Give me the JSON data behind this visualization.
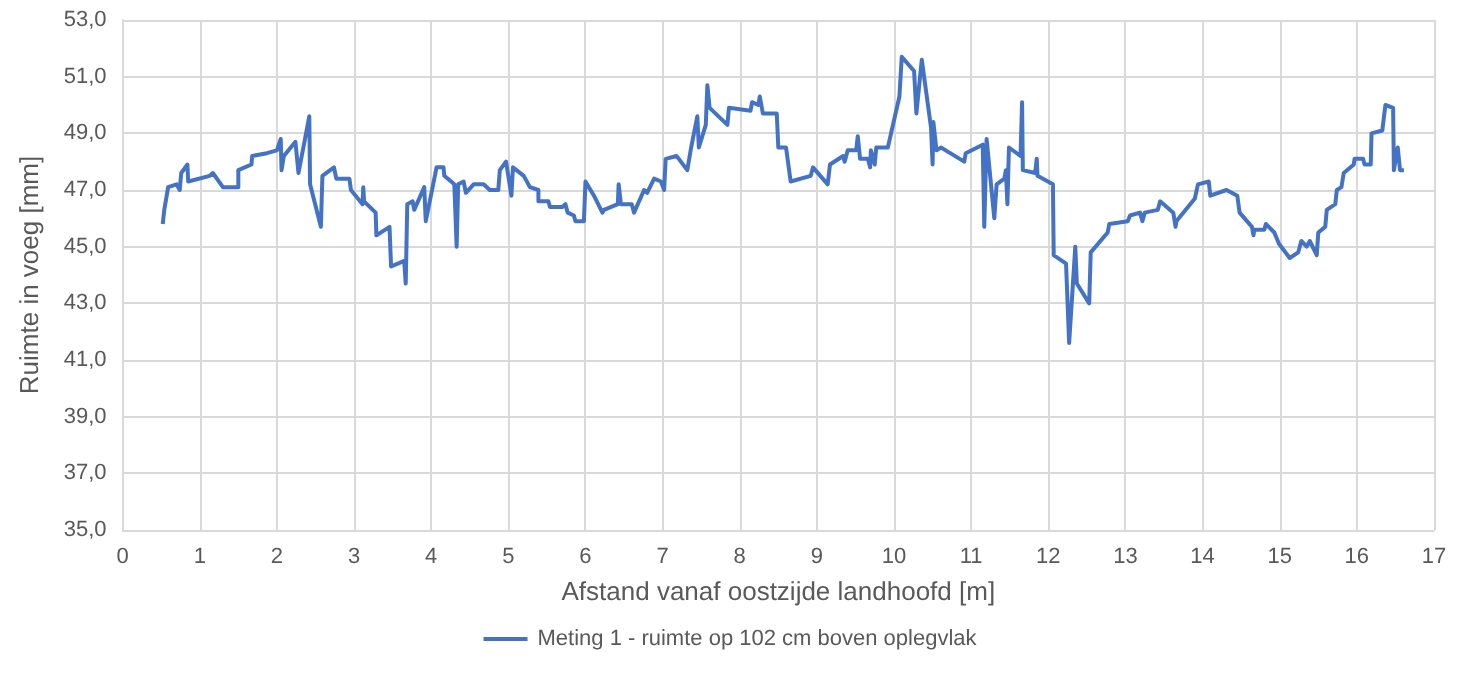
{
  "chart_data": {
    "type": "line",
    "xlabel": "Afstand vanaf oostzijde landhoofd [m]",
    "ylabel": "Ruimte in voeg [mm]",
    "xlim": [
      0,
      17
    ],
    "xticks": [
      0,
      1,
      2,
      3,
      4,
      5,
      6,
      7,
      8,
      9,
      10,
      11,
      12,
      13,
      14,
      15,
      16,
      17
    ],
    "ylim": [
      35,
      53
    ],
    "yticks": [
      {
        "value": 35,
        "label": "35,0"
      },
      {
        "value": 37,
        "label": "37,0"
      },
      {
        "value": 39,
        "label": "39,0"
      },
      {
        "value": 41,
        "label": "41,0"
      },
      {
        "value": 43,
        "label": "43,0"
      },
      {
        "value": 45,
        "label": "45,0"
      },
      {
        "value": 47,
        "label": "47,0"
      },
      {
        "value": 49,
        "label": "49,0"
      },
      {
        "value": 51,
        "label": "51,0"
      },
      {
        "value": 53,
        "label": "53,0"
      }
    ],
    "grid": true,
    "legend": "bottom",
    "marker": "none",
    "line_style": "solid",
    "series": [
      {
        "name": "Meting 1 - ruimte op 102 cm boven oplegvlak",
        "color": "#4472c4",
        "x": [
          0.52,
          0.54,
          0.59,
          0.7,
          0.74,
          0.76,
          0.84,
          0.85,
          1.13,
          1.17,
          1.3,
          1.5,
          1.5,
          1.67,
          1.68,
          1.87,
          2.0,
          2.05,
          2.06,
          2.09,
          2.24,
          2.28,
          2.42,
          2.43,
          2.57,
          2.59,
          2.74,
          2.77,
          2.94,
          2.96,
          3.11,
          3.12,
          3.13,
          3.28,
          3.29,
          3.46,
          3.48,
          3.65,
          3.67,
          3.69,
          3.76,
          3.78,
          3.91,
          3.93,
          4.07,
          4.16,
          4.17,
          4.3,
          4.33,
          4.35,
          4.42,
          4.45,
          4.55,
          4.68,
          4.76,
          4.87,
          4.89,
          4.97,
          5.0,
          5.04,
          5.06,
          5.2,
          5.28,
          5.39,
          5.39,
          5.52,
          5.54,
          5.7,
          5.74,
          5.77,
          5.85,
          5.87,
          5.98,
          6.0,
          6.11,
          6.22,
          6.24,
          6.42,
          6.43,
          6.46,
          6.6,
          6.63,
          6.76,
          6.8,
          6.89,
          6.98,
          7.02,
          7.04,
          7.18,
          7.21,
          7.32,
          7.37,
          7.45,
          7.47,
          7.56,
          7.58,
          7.61,
          7.84,
          7.86,
          8.14,
          8.16,
          8.24,
          8.26,
          8.3,
          8.48,
          8.5,
          8.6,
          8.66,
          8.92,
          8.95,
          9.14,
          9.17,
          9.34,
          9.36,
          9.4,
          9.51,
          9.53,
          9.56,
          9.66,
          9.69,
          9.7,
          9.75,
          9.77,
          9.92,
          10.07,
          10.1,
          10.26,
          10.29,
          10.36,
          10.48,
          10.5,
          10.51,
          10.55,
          10.61,
          10.67,
          10.91,
          10.93,
          11.15,
          11.17,
          11.2,
          11.3,
          11.33,
          11.43,
          11.45,
          11.47,
          11.49,
          11.64,
          11.66,
          11.67,
          11.83,
          11.85,
          11.86,
          12.06,
          12.07,
          12.23,
          12.27,
          12.35,
          12.37,
          12.53,
          12.55,
          12.77,
          12.79,
          13.03,
          13.06,
          13.19,
          13.22,
          13.25,
          13.42,
          13.45,
          13.62,
          13.65,
          13.66,
          13.9,
          13.94,
          14.08,
          14.1,
          14.31,
          14.45,
          14.48,
          14.64,
          14.66,
          14.67,
          14.8,
          14.82,
          14.93,
          14.99,
          15.13,
          15.24,
          15.28,
          15.35,
          15.39,
          15.48,
          15.5,
          15.59,
          15.61,
          15.72,
          15.74,
          15.8,
          15.83,
          15.96,
          15.97,
          16.08,
          16.1,
          16.18,
          16.19,
          16.33,
          16.37,
          16.47,
          16.48,
          16.53,
          16.56,
          16.61
        ],
        "values": [
          45.8,
          46.3,
          47.1,
          47.2,
          47.0,
          47.6,
          47.9,
          47.3,
          47.5,
          47.6,
          47.1,
          47.1,
          47.7,
          47.9,
          48.2,
          48.3,
          48.4,
          48.8,
          47.7,
          48.2,
          48.7,
          47.6,
          49.6,
          47.2,
          45.7,
          47.5,
          47.8,
          47.4,
          47.4,
          47.0,
          46.5,
          47.1,
          46.6,
          46.2,
          45.4,
          45.7,
          44.3,
          44.5,
          43.7,
          46.5,
          46.6,
          46.3,
          47.1,
          45.9,
          47.8,
          47.8,
          47.5,
          47.2,
          45.0,
          47.2,
          47.3,
          46.9,
          47.2,
          47.2,
          47.0,
          47.0,
          47.7,
          48.0,
          47.5,
          46.8,
          47.8,
          47.5,
          47.1,
          47.0,
          46.6,
          46.6,
          46.4,
          46.4,
          46.5,
          46.2,
          46.1,
          45.9,
          45.9,
          47.3,
          46.8,
          46.2,
          46.3,
          46.5,
          47.2,
          46.5,
          46.5,
          46.2,
          47.0,
          46.9,
          47.4,
          47.3,
          47.0,
          48.1,
          48.2,
          48.1,
          47.7,
          48.5,
          49.6,
          48.5,
          49.3,
          50.7,
          49.9,
          49.3,
          49.9,
          49.8,
          50.1,
          50.0,
          50.3,
          49.7,
          49.7,
          48.5,
          48.5,
          47.3,
          47.5,
          47.8,
          47.2,
          47.9,
          48.2,
          48.0,
          48.4,
          48.4,
          48.9,
          48.1,
          48.1,
          47.8,
          48.4,
          47.9,
          48.5,
          48.5,
          50.3,
          51.7,
          51.2,
          49.7,
          51.6,
          49.2,
          47.9,
          49.4,
          48.4,
          48.5,
          48.4,
          48.0,
          48.3,
          48.6,
          45.7,
          48.8,
          46.0,
          47.2,
          47.4,
          47.7,
          46.5,
          48.5,
          48.2,
          50.1,
          47.7,
          47.6,
          48.1,
          47.5,
          47.2,
          44.7,
          44.4,
          41.6,
          45.0,
          43.7,
          43.0,
          44.8,
          45.5,
          45.8,
          45.9,
          46.1,
          46.2,
          45.9,
          46.2,
          46.3,
          46.6,
          46.2,
          45.7,
          45.9,
          46.7,
          47.2,
          47.3,
          46.8,
          47.0,
          46.8,
          46.2,
          45.7,
          45.4,
          45.6,
          45.6,
          45.8,
          45.5,
          45.1,
          44.6,
          44.8,
          45.2,
          45.0,
          45.2,
          44.7,
          45.5,
          45.7,
          46.3,
          46.5,
          47.0,
          47.1,
          47.6,
          47.9,
          48.1,
          48.1,
          47.9,
          47.9,
          49.0,
          49.1,
          50.0,
          49.9,
          47.7,
          48.5,
          47.7,
          47.7
        ]
      }
    ]
  }
}
